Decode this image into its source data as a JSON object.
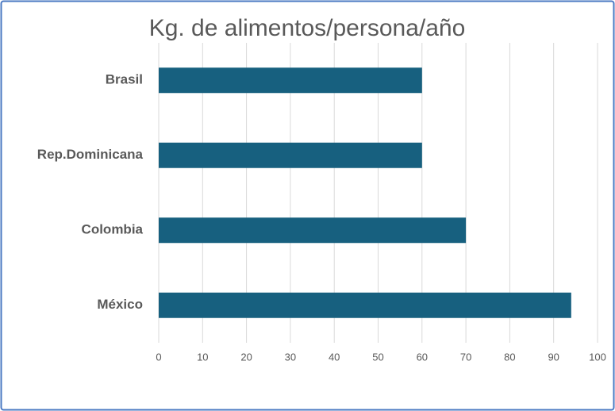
{
  "chart_data": {
    "type": "bar",
    "orientation": "horizontal",
    "title": "Kg. de alimentos/persona/año",
    "categories": [
      "Brasil",
      "Rep.Dominicana",
      "Colombia",
      "México"
    ],
    "values": [
      60,
      60,
      70,
      94
    ],
    "color": "#17607f",
    "xlim": [
      0,
      100
    ],
    "xticks": [
      0,
      10,
      20,
      30,
      40,
      50,
      60,
      70,
      80,
      90,
      100
    ],
    "grid": true
  }
}
